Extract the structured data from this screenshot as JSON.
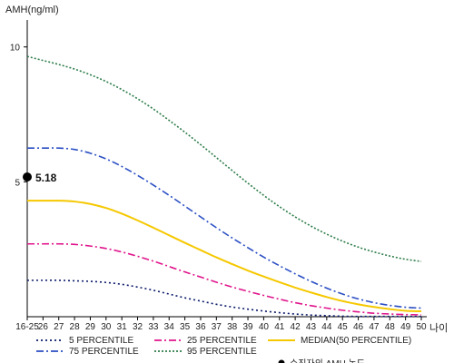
{
  "chart_data": {
    "type": "line",
    "ylabel": "AMH(ng/ml)",
    "xlabel": "나이",
    "ylim": [
      0,
      11
    ],
    "yticks": [
      5,
      10
    ],
    "categories": [
      "16-25",
      "26",
      "27",
      "28",
      "29",
      "30",
      "31",
      "32",
      "33",
      "34",
      "35",
      "36",
      "37",
      "38",
      "39",
      "40",
      "41",
      "42",
      "43",
      "44",
      "45",
      "46",
      "47",
      "48",
      "49",
      "50"
    ],
    "series": [
      {
        "name": "5 PERCENTILE",
        "color": "#0a1a6b",
        "dash": "2,3",
        "values": [
          1.35,
          1.35,
          1.35,
          1.33,
          1.31,
          1.27,
          1.2,
          1.1,
          0.98,
          0.84,
          0.7,
          0.58,
          0.46,
          0.36,
          0.28,
          0.21,
          0.15,
          0.1,
          0.06,
          0.04,
          0.02,
          0.01,
          0.01,
          0.01,
          0.01,
          0.01
        ]
      },
      {
        "name": "25 PERCENTILE",
        "color": "#e0158c",
        "dash": "8,3,2,3",
        "values": [
          2.7,
          2.7,
          2.7,
          2.68,
          2.62,
          2.53,
          2.4,
          2.24,
          2.06,
          1.86,
          1.66,
          1.47,
          1.28,
          1.1,
          0.94,
          0.79,
          0.65,
          0.52,
          0.41,
          0.32,
          0.24,
          0.18,
          0.13,
          0.1,
          0.08,
          0.07
        ]
      },
      {
        "name": "MEDIAN(50 PERCENTILE)",
        "color": "#f5c800",
        "dash": "",
        "values": [
          4.3,
          4.3,
          4.3,
          4.27,
          4.18,
          4.03,
          3.82,
          3.57,
          3.3,
          3.02,
          2.74,
          2.47,
          2.2,
          1.95,
          1.71,
          1.49,
          1.28,
          1.08,
          0.9,
          0.73,
          0.58,
          0.46,
          0.36,
          0.28,
          0.22,
          0.2
        ]
      },
      {
        "name": "75 PERCENTILE",
        "color": "#2b4fc4",
        "dash": "8,3,2,3",
        "values": [
          6.25,
          6.25,
          6.25,
          6.2,
          6.06,
          5.85,
          5.57,
          5.24,
          4.88,
          4.5,
          4.1,
          3.7,
          3.3,
          2.92,
          2.56,
          2.21,
          1.89,
          1.59,
          1.31,
          1.06,
          0.84,
          0.66,
          0.52,
          0.42,
          0.35,
          0.32
        ]
      },
      {
        "name": "95 PERCENTILE",
        "color": "#2e7d4a",
        "dash": "2,2",
        "values": [
          9.65,
          9.5,
          9.35,
          9.18,
          8.97,
          8.72,
          8.42,
          8.08,
          7.7,
          7.28,
          6.84,
          6.38,
          5.9,
          5.42,
          4.95,
          4.5,
          4.08,
          3.7,
          3.36,
          3.06,
          2.8,
          2.58,
          2.4,
          2.25,
          2.13,
          2.05
        ]
      }
    ],
    "highlight": {
      "name": "수진자의 AMH 농도",
      "category": "16-25",
      "value": 5.18,
      "label": "5.18",
      "color": "#000000"
    },
    "legend": {
      "placement": "bottom"
    }
  }
}
